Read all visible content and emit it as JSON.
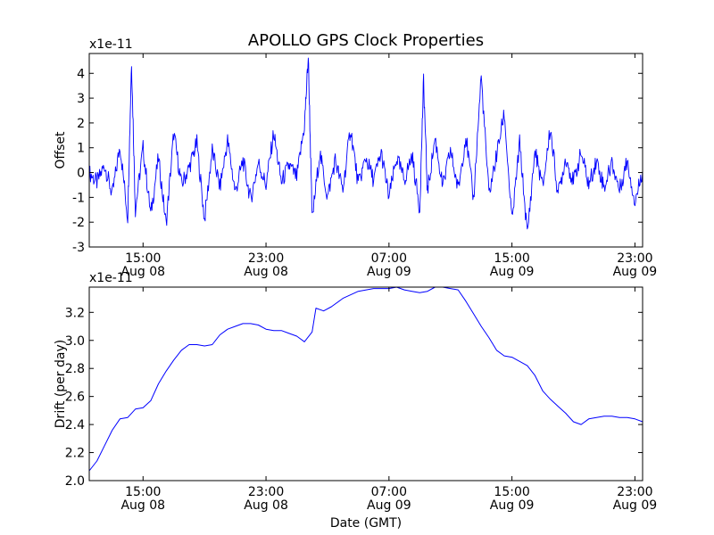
{
  "figure": {
    "title": "APOLLO GPS Clock Properties",
    "xlabel": "Date (GMT)"
  },
  "chart_data": [
    {
      "type": "line",
      "ylabel": "Offset",
      "y_multiplier_label": "x1e-11",
      "xlim": [
        "2015-08-08 11:30",
        "2015-08-09 23:30"
      ],
      "ylim": [
        -3,
        4.8
      ],
      "yticks": [
        -3,
        -2,
        -1,
        0,
        1,
        2,
        3,
        4
      ],
      "xticks": [
        {
          "time": "2015-08-08 15:00",
          "time_label": "15:00",
          "date_label": "Aug 08"
        },
        {
          "time": "2015-08-08 23:00",
          "time_label": "23:00",
          "date_label": "Aug 08"
        },
        {
          "time": "2015-08-09 07:00",
          "time_label": "07:00",
          "date_label": "Aug 09"
        },
        {
          "time": "2015-08-09 15:00",
          "time_label": "15:00",
          "date_label": "Aug 09"
        },
        {
          "time": "2015-08-09 23:00",
          "time_label": "23:00",
          "date_label": "Aug 09"
        }
      ],
      "grid": false,
      "color": "#0000ff",
      "series": [
        {
          "points": [
            [
              "2015-08-08 11:30",
              0.0
            ],
            [
              "2015-08-08 12:00",
              -0.4
            ],
            [
              "2015-08-08 12:30",
              0.3
            ],
            [
              "2015-08-08 13:00",
              -0.9
            ],
            [
              "2015-08-08 13:30",
              1.1
            ],
            [
              "2015-08-08 14:00",
              -1.8
            ],
            [
              "2015-08-08 14:15",
              4.5
            ],
            [
              "2015-08-08 14:30",
              -1.5
            ],
            [
              "2015-08-08 15:00",
              1.0
            ],
            [
              "2015-08-08 15:30",
              -1.7
            ],
            [
              "2015-08-08 16:00",
              0.6
            ],
            [
              "2015-08-08 16:30",
              -2.1
            ],
            [
              "2015-08-08 17:00",
              1.6
            ],
            [
              "2015-08-08 17:30",
              -0.5
            ],
            [
              "2015-08-08 18:00",
              0.2
            ],
            [
              "2015-08-08 18:30",
              1.2
            ],
            [
              "2015-08-08 19:00",
              -1.9
            ],
            [
              "2015-08-08 19:30",
              0.9
            ],
            [
              "2015-08-08 20:00",
              -0.6
            ],
            [
              "2015-08-08 20:30",
              1.3
            ],
            [
              "2015-08-08 21:00",
              -0.8
            ],
            [
              "2015-08-08 21:30",
              0.5
            ],
            [
              "2015-08-08 22:00",
              -1.1
            ],
            [
              "2015-08-08 22:30",
              0.4
            ],
            [
              "2015-08-08 23:00",
              -0.5
            ],
            [
              "2015-08-08 23:30",
              1.6
            ],
            [
              "2015-08-09 00:00",
              -0.4
            ],
            [
              "2015-08-09 00:30",
              0.3
            ],
            [
              "2015-08-09 01:00",
              -0.2
            ],
            [
              "2015-08-09 01:30",
              1.9
            ],
            [
              "2015-08-09 01:45",
              4.7
            ],
            [
              "2015-08-09 02:00",
              -1.9
            ],
            [
              "2015-08-09 02:30",
              0.8
            ],
            [
              "2015-08-09 03:00",
              -1.0
            ],
            [
              "2015-08-09 03:30",
              0.5
            ],
            [
              "2015-08-09 04:00",
              -0.7
            ],
            [
              "2015-08-09 04:30",
              1.8
            ],
            [
              "2015-08-09 05:00",
              -0.5
            ],
            [
              "2015-08-09 05:30",
              0.6
            ],
            [
              "2015-08-09 06:00",
              -0.3
            ],
            [
              "2015-08-09 06:30",
              0.8
            ],
            [
              "2015-08-09 07:00",
              -1.0
            ],
            [
              "2015-08-09 07:30",
              0.6
            ],
            [
              "2015-08-09 08:00",
              -0.3
            ],
            [
              "2015-08-09 08:30",
              0.7
            ],
            [
              "2015-08-09 09:00",
              -1.5
            ],
            [
              "2015-08-09 09:15",
              3.7
            ],
            [
              "2015-08-09 09:30",
              -0.8
            ],
            [
              "2015-08-09 10:00",
              1.4
            ],
            [
              "2015-08-09 10:30",
              -0.6
            ],
            [
              "2015-08-09 11:00",
              0.9
            ],
            [
              "2015-08-09 11:30",
              -0.7
            ],
            [
              "2015-08-09 12:00",
              1.5
            ],
            [
              "2015-08-09 12:30",
              -1.1
            ],
            [
              "2015-08-09 13:00",
              3.9
            ],
            [
              "2015-08-09 13:30",
              -0.9
            ],
            [
              "2015-08-09 14:00",
              0.7
            ],
            [
              "2015-08-09 14:30",
              2.4
            ],
            [
              "2015-08-09 15:00",
              -2.0
            ],
            [
              "2015-08-09 15:30",
              1.2
            ],
            [
              "2015-08-09 16:00",
              -2.5
            ],
            [
              "2015-08-09 16:30",
              0.9
            ],
            [
              "2015-08-09 17:00",
              -0.6
            ],
            [
              "2015-08-09 17:30",
              1.8
            ],
            [
              "2015-08-09 18:00",
              -0.9
            ],
            [
              "2015-08-09 18:30",
              0.6
            ],
            [
              "2015-08-09 19:00",
              -0.4
            ],
            [
              "2015-08-09 19:30",
              0.8
            ],
            [
              "2015-08-09 20:00",
              -0.5
            ],
            [
              "2015-08-09 20:30",
              0.5
            ],
            [
              "2015-08-09 21:00",
              -0.6
            ],
            [
              "2015-08-09 21:30",
              0.4
            ],
            [
              "2015-08-09 22:00",
              -0.7
            ],
            [
              "2015-08-09 22:30",
              0.5
            ],
            [
              "2015-08-09 23:00",
              -1.2
            ],
            [
              "2015-08-09 23:30",
              0.1
            ]
          ]
        }
      ]
    },
    {
      "type": "line",
      "ylabel": "Drift (per day)",
      "y_multiplier_label": "x1e-11",
      "xlim": [
        "2015-08-08 11:30",
        "2015-08-09 23:30"
      ],
      "ylim": [
        2.0,
        3.38
      ],
      "yticks": [
        "2.0",
        "2.2",
        "2.4",
        "2.6",
        "2.8",
        "3.0",
        "3.2"
      ],
      "xticks": [
        {
          "time": "2015-08-08 15:00",
          "time_label": "15:00",
          "date_label": "Aug 08"
        },
        {
          "time": "2015-08-08 23:00",
          "time_label": "23:00",
          "date_label": "Aug 08"
        },
        {
          "time": "2015-08-09 07:00",
          "time_label": "07:00",
          "date_label": "Aug 09"
        },
        {
          "time": "2015-08-09 15:00",
          "time_label": "15:00",
          "date_label": "Aug 09"
        },
        {
          "time": "2015-08-09 23:00",
          "time_label": "23:00",
          "date_label": "Aug 09"
        }
      ],
      "grid": false,
      "color": "#0000ff",
      "series": [
        {
          "points": [
            [
              "2015-08-08 11:30",
              2.07
            ],
            [
              "2015-08-08 12:00",
              2.14
            ],
            [
              "2015-08-08 12:30",
              2.25
            ],
            [
              "2015-08-08 13:00",
              2.36
            ],
            [
              "2015-08-08 13:30",
              2.44
            ],
            [
              "2015-08-08 14:00",
              2.45
            ],
            [
              "2015-08-08 14:30",
              2.51
            ],
            [
              "2015-08-08 15:00",
              2.52
            ],
            [
              "2015-08-08 15:30",
              2.57
            ],
            [
              "2015-08-08 16:00",
              2.69
            ],
            [
              "2015-08-08 16:30",
              2.78
            ],
            [
              "2015-08-08 17:00",
              2.86
            ],
            [
              "2015-08-08 17:30",
              2.93
            ],
            [
              "2015-08-08 18:00",
              2.97
            ],
            [
              "2015-08-08 18:30",
              2.97
            ],
            [
              "2015-08-08 19:00",
              2.96
            ],
            [
              "2015-08-08 19:30",
              2.97
            ],
            [
              "2015-08-08 20:00",
              3.04
            ],
            [
              "2015-08-08 20:30",
              3.08
            ],
            [
              "2015-08-08 21:00",
              3.1
            ],
            [
              "2015-08-08 21:30",
              3.12
            ],
            [
              "2015-08-08 22:00",
              3.12
            ],
            [
              "2015-08-08 22:30",
              3.11
            ],
            [
              "2015-08-08 23:00",
              3.08
            ],
            [
              "2015-08-08 23:30",
              3.07
            ],
            [
              "2015-08-09 00:00",
              3.07
            ],
            [
              "2015-08-09 00:30",
              3.05
            ],
            [
              "2015-08-09 01:00",
              3.03
            ],
            [
              "2015-08-09 01:30",
              2.99
            ],
            [
              "2015-08-09 02:00",
              3.06
            ],
            [
              "2015-08-09 02:15",
              3.23
            ],
            [
              "2015-08-09 02:45",
              3.21
            ],
            [
              "2015-08-09 03:15",
              3.24
            ],
            [
              "2015-08-09 04:00",
              3.3
            ],
            [
              "2015-08-09 05:00",
              3.35
            ],
            [
              "2015-08-09 06:00",
              3.37
            ],
            [
              "2015-08-09 07:00",
              3.37
            ],
            [
              "2015-08-09 07:30",
              3.38
            ],
            [
              "2015-08-09 08:00",
              3.36
            ],
            [
              "2015-08-09 08:30",
              3.35
            ],
            [
              "2015-08-09 09:00",
              3.34
            ],
            [
              "2015-08-09 09:30",
              3.35
            ],
            [
              "2015-08-09 10:00",
              3.38
            ],
            [
              "2015-08-09 10:30",
              3.38
            ],
            [
              "2015-08-09 11:00",
              3.37
            ],
            [
              "2015-08-09 11:30",
              3.36
            ],
            [
              "2015-08-09 12:00",
              3.28
            ],
            [
              "2015-08-09 12:30",
              3.19
            ],
            [
              "2015-08-09 13:00",
              3.1
            ],
            [
              "2015-08-09 13:30",
              3.02
            ],
            [
              "2015-08-09 14:00",
              2.93
            ],
            [
              "2015-08-09 14:30",
              2.89
            ],
            [
              "2015-08-09 15:00",
              2.88
            ],
            [
              "2015-08-09 15:30",
              2.85
            ],
            [
              "2015-08-09 16:00",
              2.82
            ],
            [
              "2015-08-09 16:30",
              2.75
            ],
            [
              "2015-08-09 17:00",
              2.64
            ],
            [
              "2015-08-09 17:30",
              2.58
            ],
            [
              "2015-08-09 18:00",
              2.53
            ],
            [
              "2015-08-09 18:30",
              2.48
            ],
            [
              "2015-08-09 19:00",
              2.42
            ],
            [
              "2015-08-09 19:30",
              2.4
            ],
            [
              "2015-08-09 20:00",
              2.44
            ],
            [
              "2015-08-09 20:30",
              2.45
            ],
            [
              "2015-08-09 21:00",
              2.46
            ],
            [
              "2015-08-09 21:30",
              2.46
            ],
            [
              "2015-08-09 22:00",
              2.45
            ],
            [
              "2015-08-09 22:30",
              2.45
            ],
            [
              "2015-08-09 23:00",
              2.44
            ],
            [
              "2015-08-09 23:30",
              2.42
            ]
          ]
        }
      ]
    }
  ]
}
